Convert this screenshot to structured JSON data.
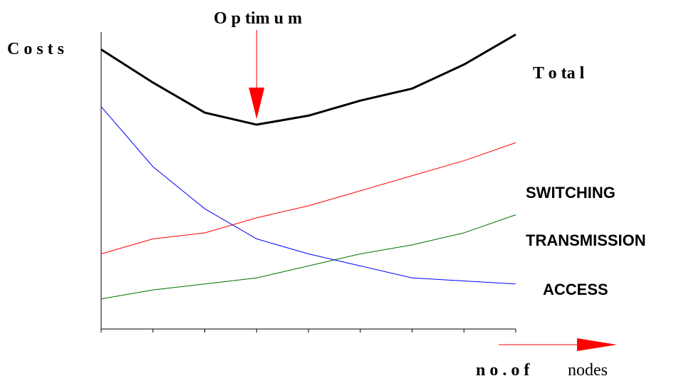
{
  "chart_data": {
    "type": "line",
    "title": "",
    "ylabel": "C o s t s",
    "xlabel_bold": "n o .  o f",
    "xlabel_plain": "nodes",
    "annotation": "O p tim u m",
    "x": [
      1,
      2,
      3,
      4,
      5,
      6,
      7,
      8,
      9
    ],
    "ylim": [
      0,
      100
    ],
    "grid": false,
    "series": [
      {
        "name": "T o ta l",
        "color": "#000000",
        "values": [
          93,
          82,
          72,
          68,
          71,
          76,
          80,
          88,
          98
        ]
      },
      {
        "name": "SWITCHING",
        "color": "#ff0000",
        "values": [
          25,
          30,
          32,
          37,
          41,
          46,
          51,
          56,
          62
        ]
      },
      {
        "name": "TRANSMISSION",
        "color": "#007000",
        "values": [
          10,
          13,
          15,
          17,
          21,
          25,
          28,
          32,
          38
        ]
      },
      {
        "name": "ACCESS",
        "color": "#0000ff",
        "values": [
          74,
          54,
          40,
          30,
          25,
          21,
          17,
          16,
          15
        ]
      }
    ],
    "optimum_index": 3,
    "arrow_color": "#ff0000"
  }
}
